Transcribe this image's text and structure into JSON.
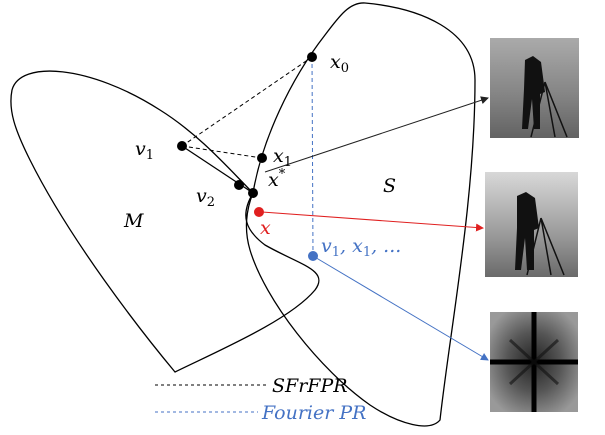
{
  "labels": {
    "x0": {
      "base": "x",
      "sub": "0"
    },
    "v1": {
      "base": "v",
      "sub": "1"
    },
    "x1": {
      "base": "x",
      "sub": "1"
    },
    "v2": {
      "base": "v",
      "sub": "2"
    },
    "xstar": {
      "base": "x",
      "sup": "*"
    },
    "x": {
      "base": "x"
    },
    "iterates": [
      {
        "text": "v"
      },
      {
        "sub": "1"
      },
      {
        "text": ", x"
      },
      {
        "sub": "1"
      },
      {
        "text": ", ..."
      }
    ],
    "set_s": "S",
    "set_m": "M"
  },
  "legend": [
    {
      "label": "SFrFPR"
    },
    {
      "label": "Fourier PR"
    }
  ]
}
